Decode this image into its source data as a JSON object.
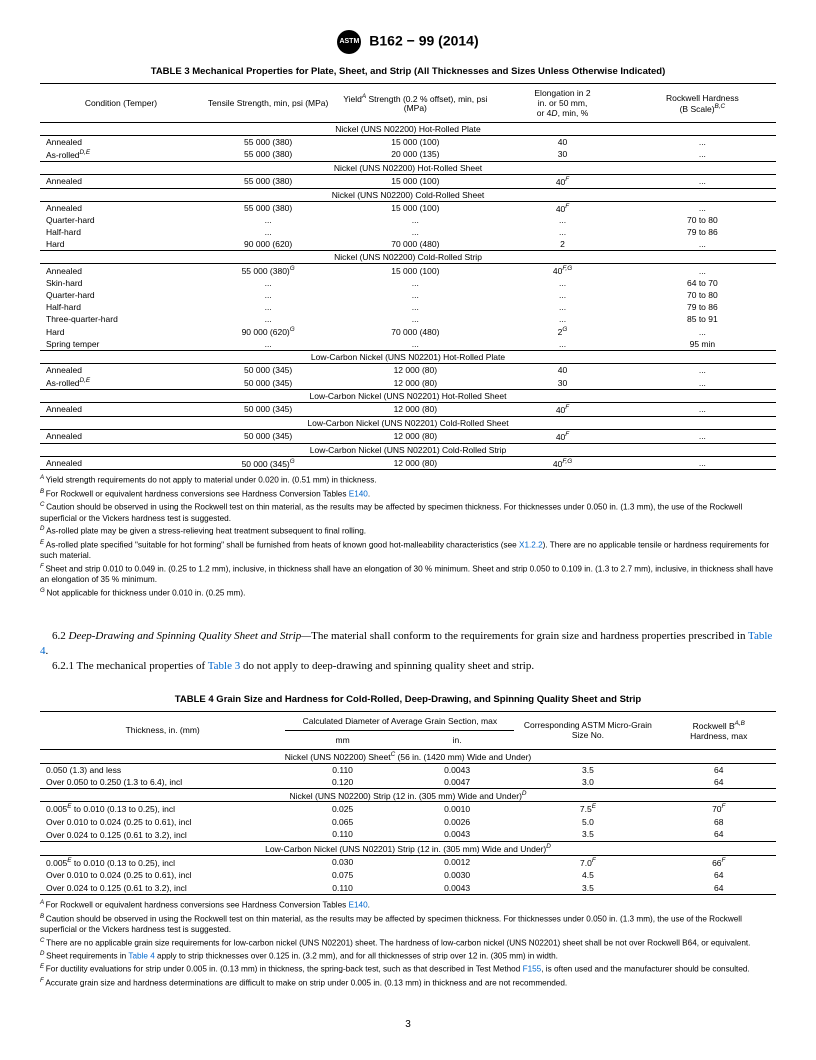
{
  "header": {
    "designation": "B162 − 99 (2014)"
  },
  "table3": {
    "title": "TABLE 3 Mechanical Properties for Plate, Sheet, and Strip (All Thicknesses and Sizes Unless Otherwise Indicated)",
    "columns": {
      "c1": "Condition (Temper)",
      "c2": "Tensile Strength, min, psi (MPa)",
      "c3_pre": "Yield",
      "c3_sup": "A",
      "c3_post": " Strength (0.2 % offset), min, psi (MPa)",
      "c4_l1": "Elongation in 2",
      "c4_l2": "in. or 50 mm,",
      "c4_l3_pre": "or 4",
      "c4_l3_i": "D",
      "c4_l3_post": ", min, %",
      "c5_l1": "Rockwell Hardness",
      "c5_l2_pre": "(B Scale)",
      "c5_l2_sup": "B,C"
    },
    "sections": [
      {
        "label": "Nickel (UNS N02200) Hot-Rolled Plate",
        "rows": [
          [
            "Annealed",
            "",
            "55  000 (380)",
            "15  000 (100)",
            "40",
            "..."
          ],
          [
            "As-rolled",
            "D,E",
            "55  000 (380)",
            "20  000 (135)",
            "30",
            "..."
          ]
        ]
      },
      {
        "label": "Nickel (UNS N02200) Hot-Rolled Sheet",
        "rows": [
          [
            "Annealed",
            "",
            "55  000 (380)",
            "15  000 (100)",
            "40",
            "F",
            "..."
          ]
        ]
      },
      {
        "label": "Nickel (UNS N02200) Cold-Rolled Sheet",
        "rows": [
          [
            "Annealed",
            "",
            "55  000 (380)",
            "15  000 (100)",
            "40",
            "F",
            "..."
          ],
          [
            "Quarter-hard",
            "",
            "...",
            "...",
            "...",
            "",
            "70 to 80"
          ],
          [
            "Half-hard",
            "",
            "...",
            "...",
            "...",
            "",
            "79 to 86"
          ],
          [
            "Hard",
            "",
            "90  000 (620)",
            "70  000 (480)",
            "2",
            "",
            "..."
          ]
        ]
      },
      {
        "label": "Nickel (UNS N02200) Cold-Rolled Strip",
        "rows": [
          [
            "Annealed",
            "",
            "55  000 (380)",
            "G",
            "15  000 (100)",
            "40",
            "F,G",
            "..."
          ],
          [
            "Skin-hard",
            "",
            "...",
            "",
            "...",
            "...",
            "",
            "64 to 70"
          ],
          [
            "Quarter-hard",
            "",
            "...",
            "",
            "...",
            "...",
            "",
            "70 to 80"
          ],
          [
            "Half-hard",
            "",
            "...",
            "",
            "...",
            "...",
            "",
            "79 to 86"
          ],
          [
            "Three-quarter-hard",
            "",
            "...",
            "",
            "...",
            "...",
            "",
            "85 to 91"
          ],
          [
            "Hard",
            "",
            "90  000 (620)",
            "G",
            "70  000 (480)",
            "2",
            "G",
            "..."
          ],
          [
            "Spring temper",
            "",
            "...",
            "",
            "...",
            "...",
            "",
            "95 min"
          ]
        ]
      },
      {
        "label": "Low-Carbon Nickel (UNS N02201) Hot-Rolled Plate",
        "rows": [
          [
            "Annealed",
            "",
            "50  000 (345)",
            "12  000 (80)",
            "40",
            "..."
          ],
          [
            "As-rolled",
            "D,E",
            "50  000 (345)",
            "12  000 (80)",
            "30",
            "..."
          ]
        ]
      },
      {
        "label": "Low-Carbon Nickel (UNS N02201) Hot-Rolled Sheet",
        "rows": [
          [
            "Annealed",
            "",
            "50  000 (345)",
            "12  000 (80)",
            "40",
            "F",
            "..."
          ]
        ]
      },
      {
        "label": "Low-Carbon Nickel (UNS N02201) Cold-Rolled Sheet",
        "rows": [
          [
            "Annealed",
            "",
            "50  000 (345)",
            "12  000 (80)",
            "40",
            "F",
            "..."
          ]
        ]
      },
      {
        "label": "Low-Carbon Nickel (UNS N02201) Cold-Rolled Strip",
        "rows": [
          [
            "Annealed",
            "",
            "50  000 (345)",
            "G",
            "12  000 (80)",
            "40",
            "F,G",
            "..."
          ]
        ]
      }
    ],
    "footnotes": {
      "A": "Yield strength requirements do not apply to material under 0.020 in. (0.51 mm) in thickness.",
      "B_pre": "For Rockwell or equivalent hardness conversions see Hardness Conversion Tables ",
      "B_link": "E140",
      "B_post": ".",
      "C": "Caution should be observed in using the Rockwell test on thin material, as the results may be affected by specimen thickness. For thicknesses under 0.050 in. (1.3 mm), the use of the Rockwell superficial or the Vickers hardness test is suggested.",
      "D": "As-rolled plate may be given a stress-relieving heat treatment subsequent to final rolling.",
      "E_pre": "As-rolled plate specified \"suitable for hot forming\" shall be furnished from heats of known good hot-malleability characteristics (see ",
      "E_link": "X1.2.2",
      "E_post": "). There are no applicable tensile or hardness requirements for such material.",
      "F": "Sheet and strip 0.010 to 0.049 in. (0.25 to 1.2 mm), inclusive, in thickness shall have an elongation of 30 % minimum. Sheet and strip 0.050 to 0.109 in. (1.3 to 2.7 mm), inclusive, in thickness shall have an elongation of 35 % minimum.",
      "G": "Not applicable for thickness under 0.010 in. (0.25 mm)."
    }
  },
  "body": {
    "p1_num": "6.2 ",
    "p1_i": "Deep-Drawing and Spinning Quality Sheet and Strip—",
    "p1_text": "The material shall conform to the requirements for grain size and hardness properties prescribed in ",
    "p1_link": "Table 4",
    "p1_end": ".",
    "p2_num": "6.2.1 The mechanical properties of ",
    "p2_link": "Table 3",
    "p2_end": " do not apply to deep-drawing and spinning quality sheet and strip."
  },
  "table4": {
    "title": "TABLE 4 Grain Size and Hardness for Cold-Rolled, Deep-Drawing, and Spinning Quality Sheet and Strip",
    "columns": {
      "c1": "Thickness, in. (mm)",
      "c2_span": "Calculated Diameter of Average Grain Section, max",
      "c2a": "mm",
      "c2b": "in.",
      "c3": "Corresponding ASTM Micro-Grain Size No.",
      "c4_pre": "Rockwell B",
      "c4_sup": "A,B",
      "c4_post": " Hardness, max"
    },
    "sections": [
      {
        "label_pre": "Nickel (UNS N02200) Sheet",
        "label_sup": "C",
        "label_post": " (56 in. (1420 mm) Wide and Under)",
        "rows": [
          [
            "0.050 (1.3) and less",
            "",
            "0.110",
            "0.0043",
            "3.5",
            "",
            "64",
            ""
          ],
          [
            "Over 0.050 to 0.250 (1.3 to 6.4), incl",
            "",
            "0.120",
            "0.0047",
            "3.0",
            "",
            "64",
            ""
          ]
        ]
      },
      {
        "label_pre": "Nickel (UNS N02200) Strip (12 in. (305 mm) Wide and Under)",
        "label_sup": "D",
        "label_post": "",
        "rows": [
          [
            "0.005",
            "E",
            " to 0.010 (0.13 to 0.25), incl",
            "0.025",
            "0.0010",
            "7.5",
            "E",
            "70",
            "F"
          ],
          [
            "Over 0.010 to 0.024 (0.25 to 0.61), incl",
            "",
            "",
            "0.065",
            "0.0026",
            "5.0",
            "",
            "68",
            ""
          ],
          [
            "Over 0.024 to 0.125 (0.61 to 3.2), incl",
            "",
            "",
            "0.110",
            "0.0043",
            "3.5",
            "",
            "64",
            ""
          ]
        ]
      },
      {
        "label_pre": "Low-Carbon Nickel (UNS N02201) Strip (12 in. (305 mm) Wide and Under)",
        "label_sup": "D",
        "label_post": "",
        "rows": [
          [
            "0.005",
            "E",
            " to 0.010 (0.13 to 0.25), incl",
            "0.030",
            "0.0012",
            "7.0",
            "F",
            "66",
            "F"
          ],
          [
            "Over 0.010 to 0.024 (0.25 to 0.61), incl",
            "",
            "",
            "0.075",
            "0.0030",
            "4.5",
            "",
            "64",
            ""
          ],
          [
            "Over 0.024 to 0.125 (0.61 to 3.2), incl",
            "",
            "",
            "0.110",
            "0.0043",
            "3.5",
            "",
            "64",
            ""
          ]
        ]
      }
    ],
    "footnotes": {
      "A_pre": "For Rockwell or equivalent hardness conversions see Hardness Conversion Tables ",
      "A_link": "E140",
      "A_post": ".",
      "B": "Caution should be observed in using the Rockwell test on thin material, as the results may be affected by specimen thickness. For thicknesses under 0.050 in. (1.3 mm), the use of the Rockwell superficial or the Vickers hardness test is suggested.",
      "C": "There are no applicable grain size requirements for low-carbon nickel (UNS N02201) sheet. The hardness of low-carbon nickel (UNS N02201) sheet shall be not over Rockwell B64, or equivalent.",
      "D_pre": "Sheet requirements in ",
      "D_link": "Table 4",
      "D_post": " apply to strip thicknesses over 0.125 in. (3.2 mm), and for all thicknesses of strip over 12 in. (305 mm) in width.",
      "E_pre": "For ductility evaluations for strip under 0.005 in. (0.13 mm) in thickness, the spring-back test, such as that described in Test Method ",
      "E_link": "F155",
      "E_post": ", is often used and the manufacturer should be consulted.",
      "F": "Accurate grain size and hardness determinations are difficult to make on strip under 0.005 in. (0.13 mm) in thickness and are not recommended."
    }
  },
  "page": "3"
}
